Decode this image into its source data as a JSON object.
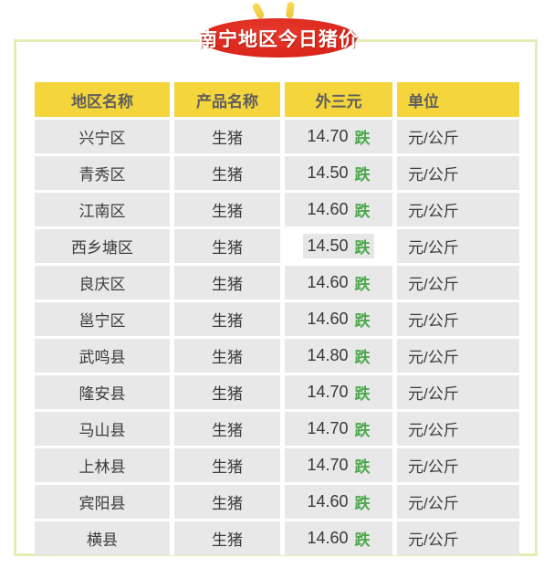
{
  "page": {
    "title_badge": "南宁地区今日猪价"
  },
  "colors": {
    "badge_red": "#da241a",
    "header_yellow": "#f4d53c",
    "row_gray": "#e8e8e8",
    "trend_green": "#4ca84c",
    "frame_border": "#e6edb4"
  },
  "table": {
    "headers": [
      "地区名称",
      "产品名称",
      "外三元",
      "单位"
    ],
    "rows": [
      {
        "region": "兴宁区",
        "product": "生猪",
        "price": "14.70",
        "trend": "跌",
        "unit": "元/公斤",
        "price_cell_white": false
      },
      {
        "region": "青秀区",
        "product": "生猪",
        "price": "14.50",
        "trend": "跌",
        "unit": "元/公斤",
        "price_cell_white": false
      },
      {
        "region": "江南区",
        "product": "生猪",
        "price": "14.60",
        "trend": "跌",
        "unit": "元/公斤",
        "price_cell_white": false
      },
      {
        "region": "西乡塘区",
        "product": "生猪",
        "price": "14.50",
        "trend": "跌",
        "unit": "元/公斤",
        "price_cell_white": true
      },
      {
        "region": "良庆区",
        "product": "生猪",
        "price": "14.60",
        "trend": "跌",
        "unit": "元/公斤",
        "price_cell_white": false
      },
      {
        "region": "邕宁区",
        "product": "生猪",
        "price": "14.60",
        "trend": "跌",
        "unit": "元/公斤",
        "price_cell_white": false
      },
      {
        "region": "武鸣县",
        "product": "生猪",
        "price": "14.80",
        "trend": "跌",
        "unit": "元/公斤",
        "price_cell_white": false
      },
      {
        "region": "隆安县",
        "product": "生猪",
        "price": "14.70",
        "trend": "跌",
        "unit": "元/公斤",
        "price_cell_white": false
      },
      {
        "region": "马山县",
        "product": "生猪",
        "price": "14.70",
        "trend": "跌",
        "unit": "元/公斤",
        "price_cell_white": false
      },
      {
        "region": "上林县",
        "product": "生猪",
        "price": "14.70",
        "trend": "跌",
        "unit": "元/公斤",
        "price_cell_white": false
      },
      {
        "region": "宾阳县",
        "product": "生猪",
        "price": "14.60",
        "trend": "跌",
        "unit": "元/公斤",
        "price_cell_white": false
      },
      {
        "region": "横县",
        "product": "生猪",
        "price": "14.60",
        "trend": "跌",
        "unit": "元/公斤",
        "price_cell_white": false
      }
    ]
  }
}
